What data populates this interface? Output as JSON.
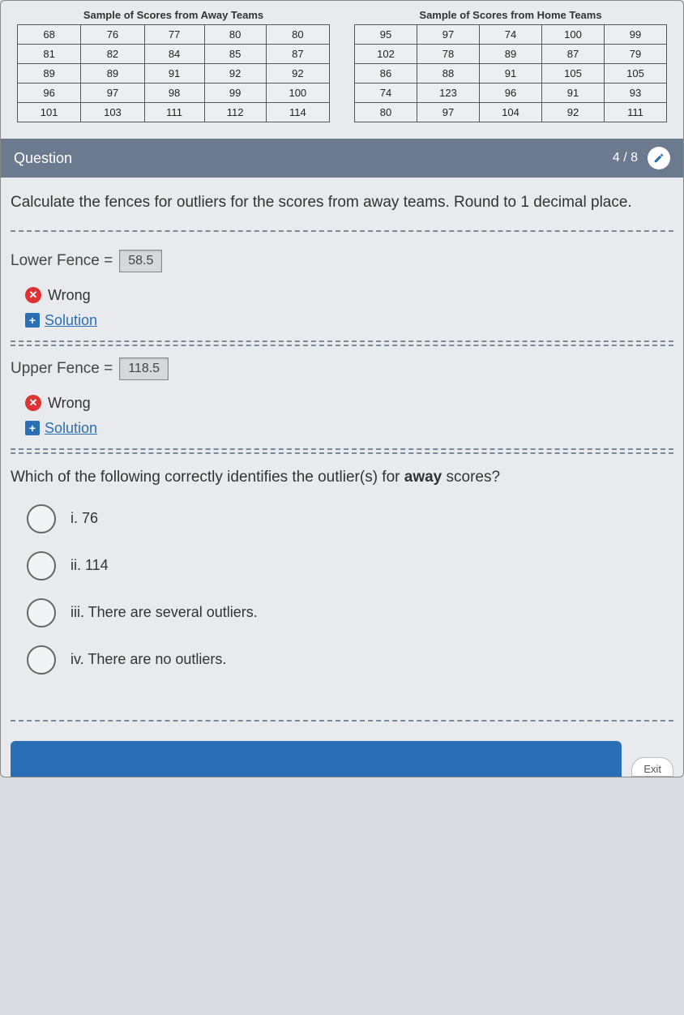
{
  "away_table": {
    "title": "Sample of Scores from Away Teams",
    "rows": [
      [
        68,
        76,
        77,
        80,
        80
      ],
      [
        81,
        82,
        84,
        85,
        87
      ],
      [
        89,
        89,
        91,
        92,
        92
      ],
      [
        96,
        97,
        98,
        99,
        100
      ],
      [
        101,
        103,
        111,
        112,
        114
      ]
    ]
  },
  "home_table": {
    "title": "Sample of Scores from Home Teams",
    "rows": [
      [
        95,
        97,
        74,
        100,
        99
      ],
      [
        102,
        78,
        89,
        87,
        79
      ],
      [
        86,
        88,
        91,
        105,
        105
      ],
      [
        74,
        123,
        96,
        91,
        93
      ],
      [
        80,
        97,
        104,
        92,
        111
      ]
    ]
  },
  "question_bar": {
    "label": "Question",
    "counter": "4 / 8"
  },
  "prompt": "Calculate the fences for outliers for the scores from away teams. Round to 1 decimal place.",
  "lower_fence": {
    "label": "Lower Fence =",
    "value": "58.5",
    "status": "Wrong",
    "solution": "Solution"
  },
  "upper_fence": {
    "label": "Upper Fence =",
    "value": "118.5",
    "status": "Wrong",
    "solution": "Solution"
  },
  "mc": {
    "prefix": "Which of the following correctly identifies the outlier(s) for ",
    "bold": "away",
    "suffix": " scores?",
    "options": [
      "i. 76",
      "ii. 114",
      "iii. There are several outliers.",
      "iv. There are no outliers."
    ]
  },
  "exit_label": "Exit",
  "colors": {
    "bar": "#6b7a8f",
    "link": "#2a6fb5",
    "wrong": "#d33",
    "bg": "#e8eaed"
  }
}
